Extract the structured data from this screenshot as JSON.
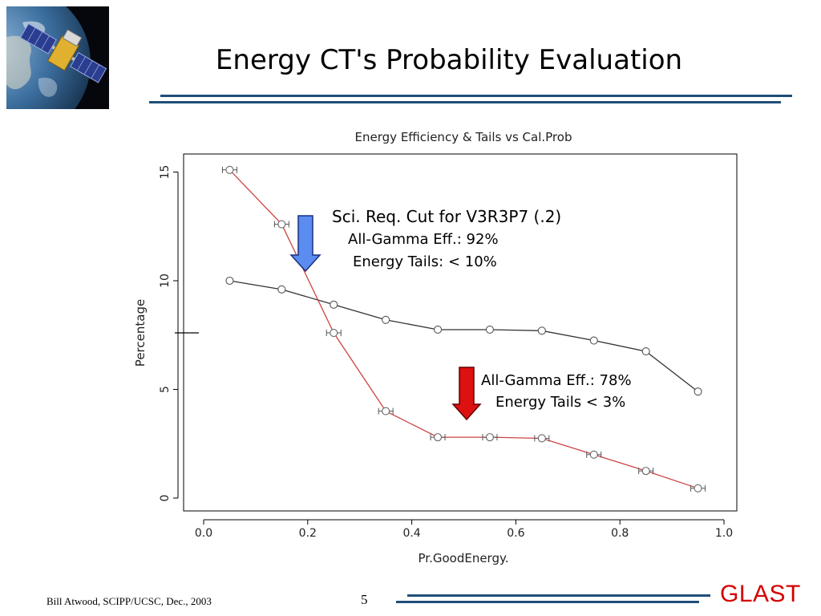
{
  "slide": {
    "title": "Energy CT's Probability Evaluation",
    "footer_author": "Bill Atwood,  SCIPP/UCSC, Dec., 2003",
    "page_number": "5",
    "brand": "GLAST"
  },
  "annotations": {
    "blue": {
      "line1": "Sci. Req. Cut for V3R3P7 (.2)",
      "line2": "All-Gamma Eff.: 92%",
      "line3": "Energy Tails: < 10%"
    },
    "red": {
      "line1": "All-Gamma Eff.: 78%",
      "line2": "Energy Tails < 3%"
    }
  },
  "colors": {
    "accent_line": "#1f4e79",
    "brand": "#d60000",
    "eff_series": "#333333",
    "tails_series": "#cc4444",
    "blue_arrow": "#5b8cf0",
    "red_arrow": "#dd1111"
  },
  "chart_data": {
    "type": "line",
    "title": "Energy Efficiency & Tails vs Cal.Prob",
    "xlabel": "Pr.GoodEnergy.",
    "ylabel": "Percentage",
    "xlim": [
      0.0,
      1.0
    ],
    "ylim": [
      0,
      15
    ],
    "x_ticks": [
      "0.0",
      "0.2",
      "0.4",
      "0.6",
      "0.8",
      "1.0"
    ],
    "y_ticks": [
      "0",
      "5",
      "10",
      "15"
    ],
    "grid": false,
    "x": [
      0.05,
      0.15,
      0.25,
      0.35,
      0.45,
      0.55,
      0.65,
      0.75,
      0.85,
      0.95
    ],
    "series": [
      {
        "values": [
          10.0,
          9.6,
          8.9,
          8.2,
          7.75,
          7.75,
          7.7,
          7.25,
          6.75,
          4.9
        ]
      },
      {
        "values": [
          15.1,
          12.6,
          7.6,
          4.0,
          2.8,
          2.8,
          2.75,
          2.0,
          1.25,
          0.45
        ]
      }
    ]
  }
}
